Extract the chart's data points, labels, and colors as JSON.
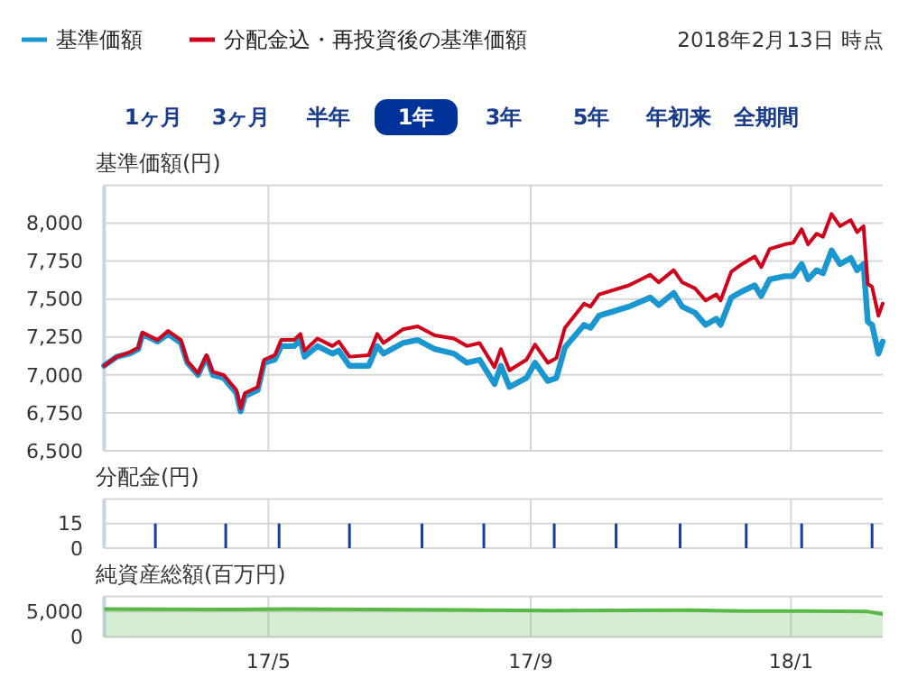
{
  "chart_data": [
    {
      "type": "line",
      "ylabel": "基準価額(円)",
      "legend": "top left",
      "grid": true,
      "tick_labels": "y",
      "annotations": [
        "2018年2月13日 時点",
        "1ヶ月",
        "3ヶ月",
        "半年",
        "1年",
        "3年",
        "5年",
        "年初来",
        "全期間"
      ],
      "xlim": [
        "2017-02-13",
        "2018-02-13"
      ],
      "xticks": [
        {
          "value": "2017-05-01",
          "label": null
        },
        {
          "value": "2017-09-01",
          "label": null
        },
        {
          "value": "2018-01-01",
          "label": null
        }
      ],
      "ylim": [
        6500,
        8250
      ],
      "yticks": [
        {
          "value": 6500,
          "label": "6,500"
        },
        {
          "value": 6750,
          "label": "6,750"
        },
        {
          "value": 7000,
          "label": "7,000"
        },
        {
          "value": 7250,
          "label": "7,250"
        },
        {
          "value": 7500,
          "label": "7,500"
        },
        {
          "value": 7750,
          "label": "7,750"
        },
        {
          "value": 8000,
          "label": "8,000"
        },
        {
          "value": 8250,
          "label": null
        }
      ],
      "x": [
        "2017-02-13",
        "2017-02-19",
        "2017-02-25",
        "2017-03-01",
        "2017-03-03",
        "2017-03-10",
        "2017-03-15",
        "2017-03-21",
        "2017-03-24",
        "2017-03-29",
        "2017-04-02",
        "2017-04-05",
        "2017-04-10",
        "2017-04-16",
        "2017-04-18",
        "2017-04-20",
        "2017-04-26",
        "2017-04-29",
        "2017-05-04",
        "2017-05-07",
        "2017-05-13",
        "2017-05-16",
        "2017-05-18",
        "2017-05-24",
        "2017-05-31",
        "2017-06-03",
        "2017-06-08",
        "2017-06-17",
        "2017-06-21",
        "2017-06-24",
        "2017-07-03",
        "2017-07-10",
        "2017-07-18",
        "2017-07-27",
        "2017-08-02",
        "2017-08-08",
        "2017-08-15",
        "2017-08-18",
        "2017-08-22",
        "2017-08-30",
        "2017-09-03",
        "2017-09-09",
        "2017-09-13",
        "2017-09-17",
        "2017-09-26",
        "2017-09-29",
        "2017-10-03",
        "2017-10-17",
        "2017-10-27",
        "2017-10-31",
        "2017-11-07",
        "2017-11-11",
        "2017-11-17",
        "2017-11-22",
        "2017-11-27",
        "2017-11-29",
        "2017-12-04",
        "2017-12-09",
        "2017-12-15",
        "2017-12-18",
        "2017-12-22",
        "2017-12-29",
        "2018-01-02",
        "2018-01-06",
        "2018-01-09",
        "2018-01-13",
        "2018-01-16",
        "2018-01-20",
        "2018-01-24",
        "2018-01-29",
        "2018-02-01",
        "2018-02-04",
        "2018-02-06",
        "2018-02-08",
        "2018-02-11",
        "2018-02-13"
      ],
      "series": [
        {
          "name": "基準価額",
          "color": "#1a96d0",
          "values": [
            7060,
            7120,
            7140,
            7170,
            7270,
            7220,
            7270,
            7210,
            7080,
            7000,
            7120,
            7000,
            6980,
            6880,
            6760,
            6860,
            6900,
            7080,
            7100,
            7190,
            7190,
            7230,
            7120,
            7190,
            7140,
            7160,
            7060,
            7060,
            7190,
            7140,
            7210,
            7230,
            7170,
            7140,
            7080,
            7100,
            6940,
            7060,
            6920,
            6980,
            7080,
            6960,
            6980,
            7180,
            7330,
            7310,
            7390,
            7450,
            7510,
            7460,
            7540,
            7450,
            7410,
            7330,
            7370,
            7330,
            7510,
            7550,
            7590,
            7520,
            7630,
            7650,
            7650,
            7730,
            7630,
            7690,
            7670,
            7820,
            7730,
            7770,
            7690,
            7730,
            7350,
            7330,
            7140,
            7220
          ]
        },
        {
          "name": "分配金込・再投資後の基準価額",
          "color": "#d0021b",
          "values": [
            7060,
            7120,
            7150,
            7180,
            7280,
            7230,
            7290,
            7230,
            7090,
            7010,
            7130,
            7020,
            7000,
            6900,
            6780,
            6880,
            6920,
            7100,
            7130,
            7230,
            7230,
            7270,
            7160,
            7240,
            7190,
            7220,
            7120,
            7130,
            7270,
            7210,
            7300,
            7320,
            7260,
            7240,
            7190,
            7210,
            7050,
            7170,
            7030,
            7100,
            7200,
            7080,
            7110,
            7310,
            7470,
            7450,
            7530,
            7590,
            7660,
            7610,
            7690,
            7610,
            7570,
            7490,
            7530,
            7490,
            7680,
            7730,
            7780,
            7710,
            7830,
            7860,
            7870,
            7960,
            7860,
            7930,
            7910,
            8060,
            7980,
            8020,
            7940,
            7980,
            7600,
            7580,
            7390,
            7470
          ]
        }
      ]
    },
    {
      "type": "bar",
      "ylabel": "分配金(円)",
      "grid": true,
      "tick_labels": "y",
      "color": "#1a3c9c",
      "xlim": [
        "2017-02-13",
        "2018-02-13"
      ],
      "xticks": [
        {
          "value": "2017-05-01",
          "label": null
        },
        {
          "value": "2017-09-01",
          "label": null
        },
        {
          "value": "2018-01-01",
          "label": null
        }
      ],
      "ylim": [
        0,
        30
      ],
      "yticks": [
        {
          "value": 0,
          "label": "0"
        },
        {
          "value": 15,
          "label": "15"
        },
        {
          "value": 30,
          "label": null
        }
      ],
      "x": [
        "2017-03-09",
        "2017-04-11",
        "2017-05-06",
        "2017-06-08",
        "2017-07-12",
        "2017-08-10",
        "2017-09-12",
        "2017-10-11",
        "2017-11-10",
        "2017-12-11",
        "2018-01-06",
        "2018-02-08"
      ],
      "values": [
        15,
        15,
        15,
        15,
        15,
        15,
        15,
        15,
        15,
        15,
        15,
        15
      ]
    },
    {
      "type": "area",
      "ylabel": "純資産総額(百万円)",
      "grid": true,
      "color": "#58b947",
      "xlim": [
        "2017-02-13",
        "2018-02-13"
      ],
      "xticks": [
        {
          "value": "2017-05-01",
          "label": "17/5"
        },
        {
          "value": "2017-09-01",
          "label": "17/9"
        },
        {
          "value": "2018-01-01",
          "label": "18/1"
        }
      ],
      "ylim": [
        0,
        8000
      ],
      "yticks": [
        0,
        {
          "value": 5000,
          "label": "5,000"
        },
        {
          "value": 8000,
          "label": null
        }
      ],
      "x": [
        "2017-02-13",
        "2017-04-10",
        "2017-05-10",
        "2017-08-10",
        "2017-09-10",
        "2017-11-10",
        "2017-12-10",
        "2018-01-10",
        "2018-02-06",
        "2018-02-13"
      ],
      "values": [
        5500,
        5400,
        5500,
        5300,
        5200,
        5300,
        5100,
        5100,
        5000,
        4500
      ]
    }
  ]
}
